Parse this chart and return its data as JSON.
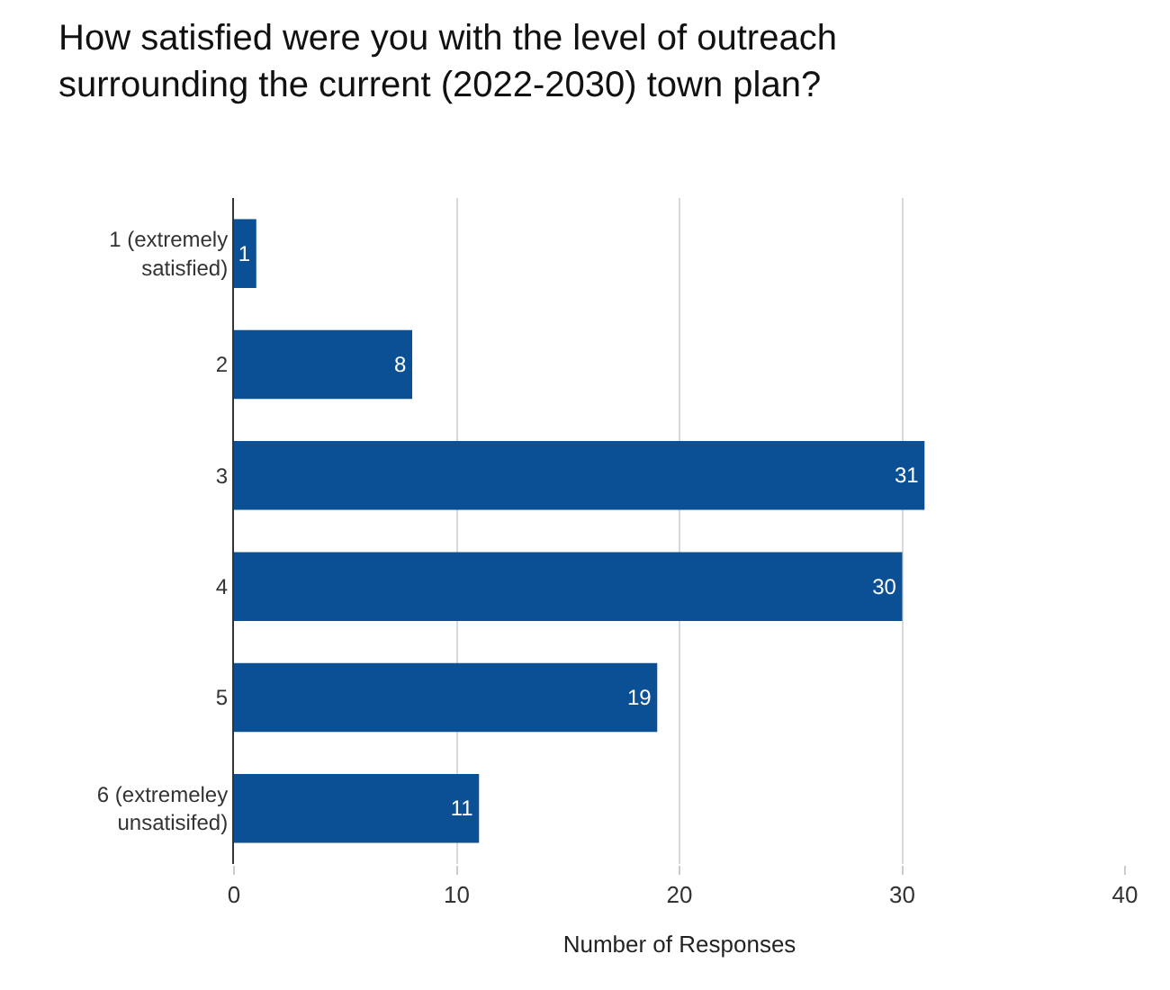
{
  "chart_data": {
    "type": "bar",
    "orientation": "horizontal",
    "title": "How satisfied were you with the level of outreach surrounding the current (2022-2030) town plan?",
    "xlabel": "Number of Responses",
    "categories": [
      "1 (extremely satisfied)",
      "2",
      "3",
      "4",
      "5",
      "6 (extremeley unsatisifed)"
    ],
    "values": [
      1,
      8,
      31,
      30,
      19,
      11
    ],
    "color": "#0b4f94",
    "xlim": [
      0,
      40
    ],
    "xticks": [
      0,
      10,
      20,
      30,
      40
    ],
    "grid": "x",
    "data_labels": true
  }
}
